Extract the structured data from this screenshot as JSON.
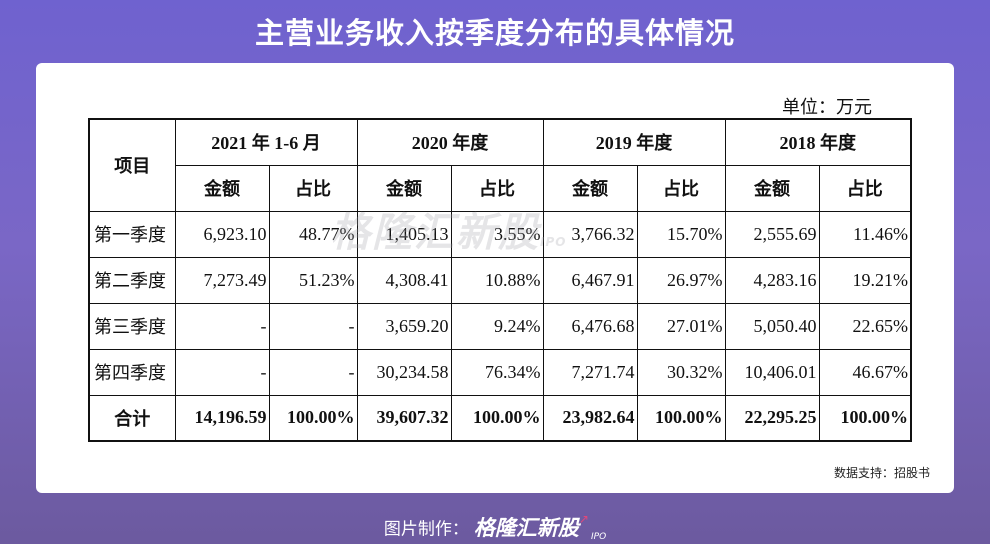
{
  "title": "主营业务收入按季度分布的具体情况",
  "unit": "单位：万元",
  "table": {
    "item_header": "项目",
    "periods": [
      "2021 年 1-6 月",
      "2020 年度",
      "2019 年度",
      "2018 年度"
    ],
    "amount_label": "金额",
    "ratio_label": "占比",
    "rows": [
      {
        "label": "第一季度",
        "cells": [
          "6,923.10",
          "48.77%",
          "1,405.13",
          "3.55%",
          "3,766.32",
          "15.70%",
          "2,555.69",
          "11.46%"
        ]
      },
      {
        "label": "第二季度",
        "cells": [
          "7,273.49",
          "51.23%",
          "4,308.41",
          "10.88%",
          "6,467.91",
          "26.97%",
          "4,283.16",
          "19.21%"
        ]
      },
      {
        "label": "第三季度",
        "cells": [
          "-",
          "-",
          "3,659.20",
          "9.24%",
          "6,476.68",
          "27.01%",
          "5,050.40",
          "22.65%"
        ]
      },
      {
        "label": "第四季度",
        "cells": [
          "-",
          "-",
          "30,234.58",
          "76.34%",
          "7,271.74",
          "30.32%",
          "10,406.01",
          "46.67%"
        ]
      }
    ],
    "total": {
      "label": "合计",
      "cells": [
        "14,196.59",
        "100.00%",
        "39,607.32",
        "100.00%",
        "23,982.64",
        "100.00%",
        "22,295.25",
        "100.00%"
      ]
    }
  },
  "source": "数据支持：招股书",
  "watermark": {
    "text": "格隆汇新股",
    "sub": "IPO"
  },
  "footer": {
    "label": "图片制作：",
    "logo": "格隆汇新股",
    "logo_sub": "IPO"
  }
}
